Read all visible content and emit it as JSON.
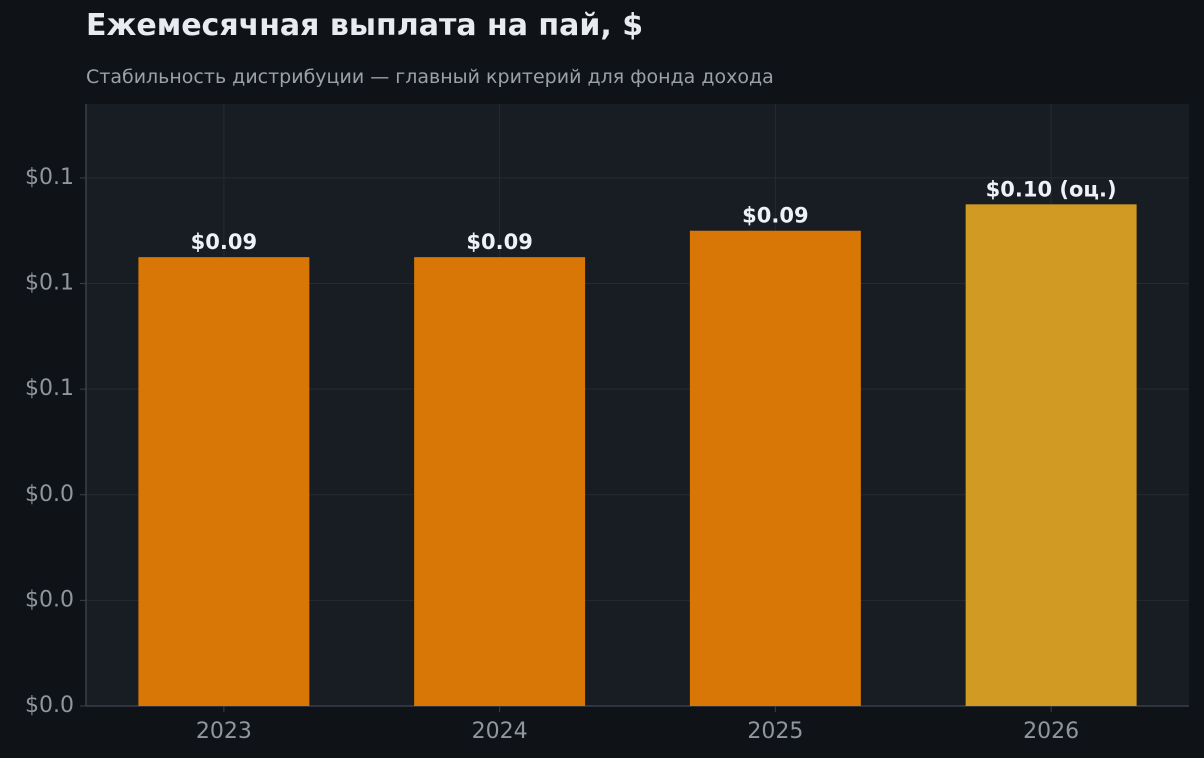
{
  "chart_data": {
    "type": "bar",
    "title": "Ежемесячная выплата на пай, $",
    "subtitle": "Стабильность дистрибуции — главный критерий для фонда дохода",
    "xlabel": "",
    "ylabel": "",
    "categories": [
      "2023",
      "2024",
      "2025",
      "2026"
    ],
    "values": [
      0.085,
      0.085,
      0.09,
      0.095
    ],
    "value_labels": [
      "$0.09",
      "$0.09",
      "$0.09",
      "$0.10 (оц.)"
    ],
    "estimated": [
      false,
      false,
      false,
      true
    ],
    "y_ticks": [
      0,
      0.02,
      0.04,
      0.06,
      0.08,
      0.1
    ],
    "y_tick_labels": [
      "$0.0",
      "$0.0",
      "$0.0",
      "$0.1",
      "$0.1",
      "$0.1"
    ],
    "ylim": [
      0,
      0.114
    ],
    "grid": true,
    "legend": "none",
    "colors": {
      "actual": "#d97706",
      "estimate": "#d19a22",
      "plot_background": "#181c23",
      "page_background": "#0f1317",
      "grid": "#262b33",
      "axis": "#3a4048"
    }
  }
}
